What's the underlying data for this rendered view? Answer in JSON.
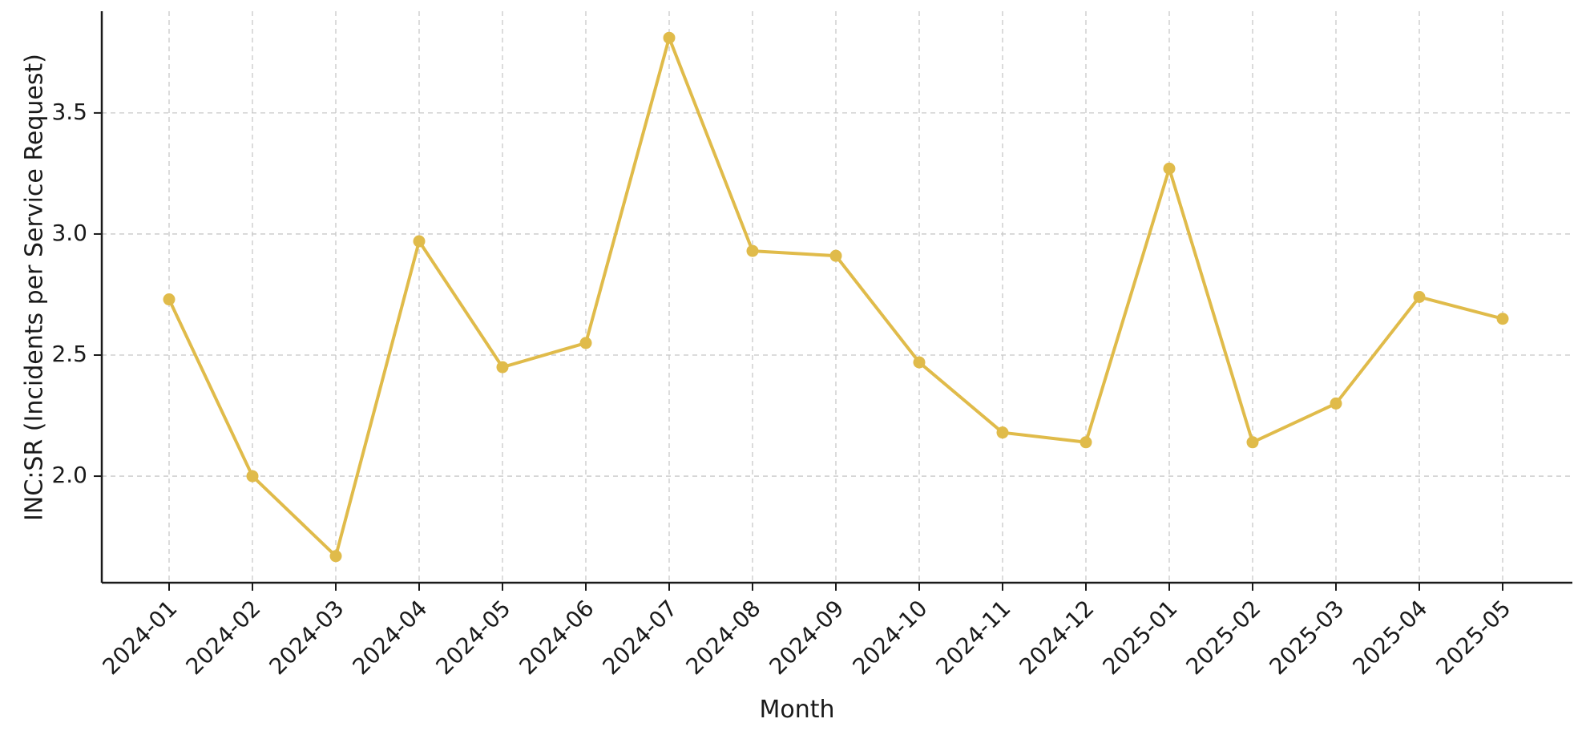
{
  "chart_data": {
    "type": "line",
    "title": "",
    "xlabel": "Month",
    "ylabel": "INC:SR (Incidents per Service Request)",
    "categories": [
      "2024-01",
      "2024-02",
      "2024-03",
      "2024-04",
      "2024-05",
      "2024-06",
      "2024-07",
      "2024-08",
      "2024-09",
      "2024-10",
      "2024-11",
      "2024-12",
      "2025-01",
      "2025-02",
      "2025-03",
      "2025-04",
      "2025-05"
    ],
    "series": [
      {
        "values": [
          2.73,
          2.0,
          1.67,
          2.97,
          2.45,
          2.55,
          3.81,
          2.93,
          2.91,
          2.47,
          2.18,
          2.14,
          3.27,
          2.14,
          2.3,
          2.74,
          2.65
        ],
        "color": "#e0bb4a"
      }
    ],
    "yticks": [
      "2.0",
      "2.5",
      "3.0",
      "3.5"
    ],
    "ylim": [
      1.56,
      3.92
    ],
    "grid": true,
    "legend": "none"
  }
}
